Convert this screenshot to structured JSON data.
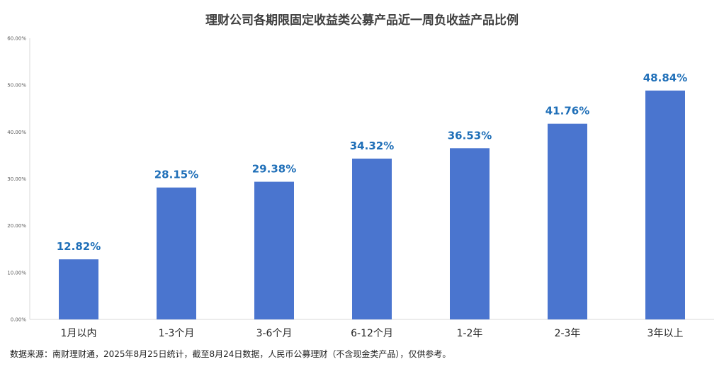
{
  "chart_data": {
    "type": "bar",
    "title": "理财公司各期限固定收益类公募产品近一周负收益产品比例",
    "categories": [
      "1月以内",
      "1-3个月",
      "3-6个月",
      "6-12个月",
      "1-2年",
      "2-3年",
      "3年以上"
    ],
    "values": [
      12.82,
      28.15,
      29.38,
      34.32,
      36.53,
      41.76,
      48.84
    ],
    "value_labels": [
      "12.82%",
      "28.15%",
      "29.38%",
      "34.32%",
      "36.53%",
      "41.76%",
      "48.84%"
    ],
    "y_ticks": [
      0,
      10,
      20,
      30,
      40,
      50,
      60
    ],
    "y_tick_labels": [
      "0.00%",
      "10.00%",
      "20.00%",
      "30.00%",
      "40.00%",
      "50.00%",
      "60.00%"
    ],
    "ylim": [
      0,
      60
    ],
    "xlabel": "",
    "ylabel": "",
    "grid": false,
    "legend": "none",
    "bar_color": "#4a75cf",
    "label_color": "#1f6fb8"
  },
  "source_note": "数据来源：南财理财通，2025年8月25日统计，截至8月24日数据，人民币公募理财（不含现金类产品），仅供参考。"
}
